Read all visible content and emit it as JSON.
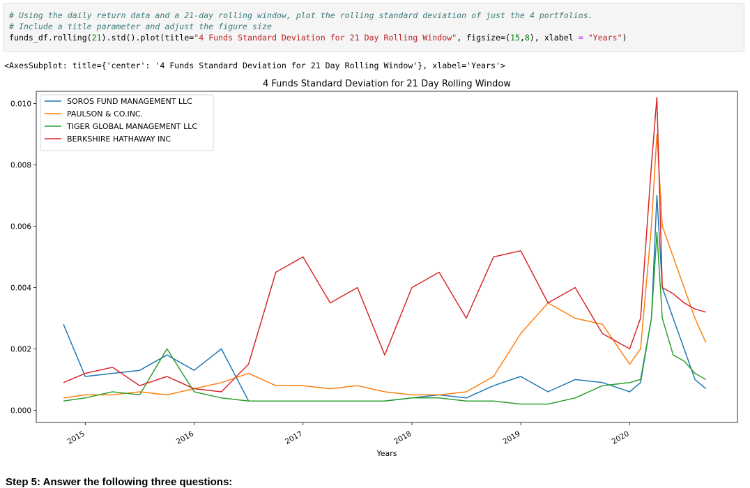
{
  "code_cell": {
    "comment_1": "# Using the daily return data and a 21-day rolling window, plot the rolling standard deviation of just the 4 portfolios.",
    "comment_2": "# Include a title parameter and adjust the figure size",
    "code_prefix": "funds_df.rolling(",
    "code_num1": "21",
    "code_mid1": ").std().plot(title=",
    "code_title_str": "\"4 Funds Standard Deviation for 21 Day Rolling Window\"",
    "code_mid2": ", figsize=(",
    "code_num2": "15",
    "code_comma": ",",
    "code_num3": "8",
    "code_mid3": "), xlabel ",
    "code_eq": "=",
    "code_space": " ",
    "code_xlabel_str": "\"Years\"",
    "code_suffix": ")"
  },
  "output_text": "<AxesSubplot: title={'center': '4 Funds Standard Deviation for 21 Day Rolling Window'}, xlabel='Years'>",
  "chart_data": {
    "type": "line",
    "title": "4 Funds Standard Deviation for 21 Day Rolling Window",
    "xlabel": "Years",
    "ylabel": "",
    "x_ticks": [
      "2015",
      "2016",
      "2017",
      "2018",
      "2019",
      "2020"
    ],
    "y_ticks": [
      "0.000",
      "0.002",
      "0.004",
      "0.006",
      "0.008",
      "0.010"
    ],
    "xlim": [
      2014.55,
      2020.99
    ],
    "ylim": [
      -0.0004,
      0.0104
    ],
    "legend_position": "top-left",
    "grid": false,
    "x": [
      2014.8,
      2015.0,
      2015.25,
      2015.5,
      2015.75,
      2016.0,
      2016.25,
      2016.5,
      2016.75,
      2017.0,
      2017.25,
      2017.5,
      2017.75,
      2018.0,
      2018.25,
      2018.5,
      2018.75,
      2019.0,
      2019.25,
      2019.5,
      2019.75,
      2020.0,
      2020.1,
      2020.2,
      2020.25,
      2020.3,
      2020.4,
      2020.5,
      2020.6,
      2020.7
    ],
    "series": [
      {
        "name": "SOROS FUND MANAGEMENT LLC",
        "color": "#1f77b4",
        "values": [
          0.0028,
          0.0011,
          0.0012,
          0.0013,
          0.0018,
          0.0013,
          0.002,
          0.0003,
          0.0003,
          0.0003,
          0.0003,
          0.0003,
          0.0003,
          0.0004,
          0.0005,
          0.0004,
          0.0008,
          0.0011,
          0.0006,
          0.001,
          0.0009,
          0.0006,
          0.0009,
          0.003,
          0.007,
          0.004,
          0.003,
          0.002,
          0.001,
          0.0007
        ]
      },
      {
        "name": "PAULSON & CO.INC.",
        "color": "#ff7f0e",
        "values": [
          0.0004,
          0.0005,
          0.0005,
          0.0006,
          0.0005,
          0.0007,
          0.0009,
          0.0012,
          0.0008,
          0.0008,
          0.0007,
          0.0008,
          0.0006,
          0.0005,
          0.0005,
          0.0006,
          0.0011,
          0.0025,
          0.0035,
          0.003,
          0.0028,
          0.0015,
          0.002,
          0.006,
          0.009,
          0.006,
          0.005,
          0.004,
          0.003,
          0.0022
        ]
      },
      {
        "name": "TIGER GLOBAL MANAGEMENT LLC",
        "color": "#2ca02c",
        "values": [
          0.0003,
          0.0004,
          0.0006,
          0.0005,
          0.002,
          0.0006,
          0.0004,
          0.0003,
          0.0003,
          0.0003,
          0.0003,
          0.0003,
          0.0003,
          0.0004,
          0.0004,
          0.0003,
          0.0003,
          0.0002,
          0.0002,
          0.0004,
          0.0008,
          0.0009,
          0.001,
          0.003,
          0.0058,
          0.003,
          0.0018,
          0.0016,
          0.0012,
          0.001
        ]
      },
      {
        "name": "BERKSHIRE HATHAWAY INC",
        "color": "#d62728",
        "values": [
          0.0009,
          0.0012,
          0.0014,
          0.0008,
          0.0011,
          0.0007,
          0.0006,
          0.0015,
          0.0045,
          0.005,
          0.0035,
          0.004,
          0.0018,
          0.004,
          0.0045,
          0.003,
          0.005,
          0.0052,
          0.0035,
          0.004,
          0.0025,
          0.002,
          0.003,
          0.008,
          0.0102,
          0.004,
          0.0038,
          0.0035,
          0.0033,
          0.0032
        ]
      }
    ]
  },
  "markdown_heading": "Step 5: Answer the following three questions:"
}
